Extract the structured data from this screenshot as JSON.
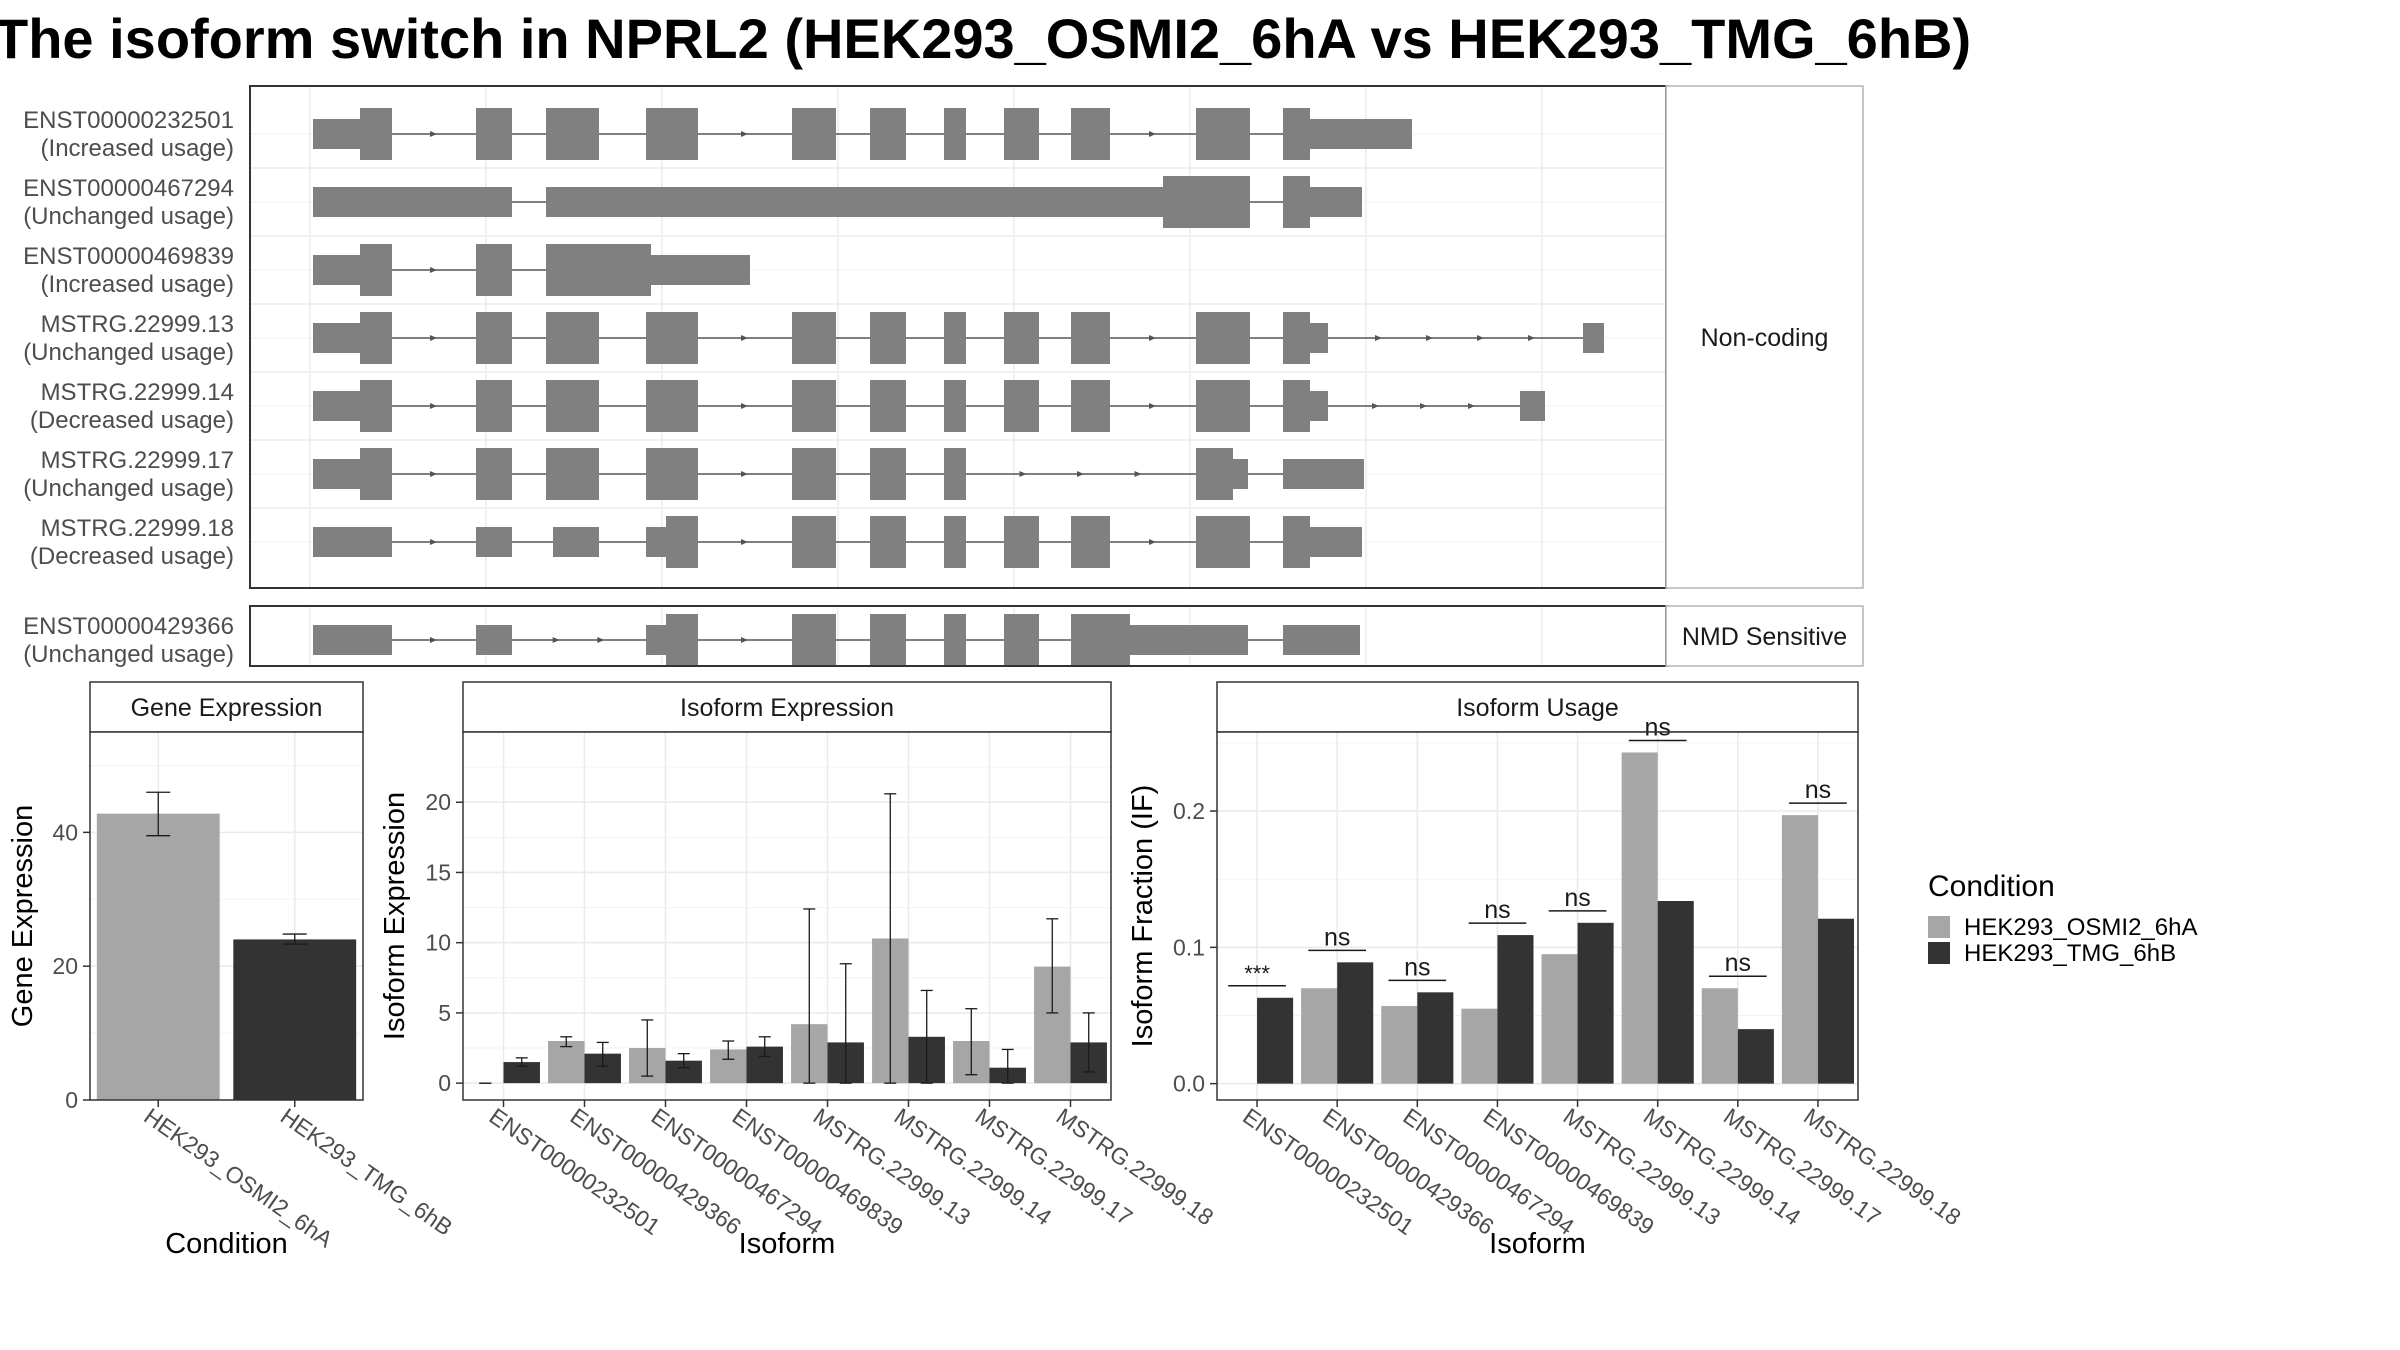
{
  "title": "The isoform switch in NPRL2 (HEK293_OSMI2_6hA vs HEK293_TMG_6hB)",
  "colors": {
    "cond_a": "#a6a6a6",
    "cond_b": "#333333",
    "exon": "#808080",
    "grid": "#ebebeb"
  },
  "chart_data": [
    {
      "type": "gene-structure",
      "panel": "transcripts",
      "groups": [
        {
          "label": "Non-coding",
          "transcripts": [
            {
              "id": "ENST00000232501",
              "status": "(Increased usage)"
            },
            {
              "id": "ENST00000467294",
              "status": "(Unchanged usage)"
            },
            {
              "id": "ENST00000469839",
              "status": "(Increased usage)"
            },
            {
              "id": "MSTRG.22999.13",
              "status": "(Unchanged usage)"
            },
            {
              "id": "MSTRG.22999.14",
              "status": "(Decreased usage)"
            },
            {
              "id": "MSTRG.22999.17",
              "status": "(Unchanged usage)"
            },
            {
              "id": "MSTRG.22999.18",
              "status": "(Decreased usage)"
            }
          ]
        },
        {
          "label": "NMD Sensitive",
          "transcripts": [
            {
              "id": "ENST00000429366",
              "status": "(Unchanged usage)"
            }
          ]
        }
      ]
    },
    {
      "type": "bar",
      "panel": "gene",
      "strip": "Gene Expression",
      "xlabel": "Condition",
      "ylabel": "Gene Expression",
      "ylim": [
        0,
        55
      ],
      "yticks": [
        0,
        20,
        40
      ],
      "categories": [
        "HEK293_OSMI2_6hA",
        "HEK293_TMG_6hB"
      ],
      "values": [
        42.8,
        24.0
      ],
      "errors": [
        [
          39.5,
          46.0
        ],
        [
          23.3,
          24.8
        ]
      ]
    },
    {
      "type": "bar",
      "panel": "isoform-expression",
      "strip": "Isoform Expression",
      "xlabel": "Isoform",
      "ylabel": "Isoform Expression",
      "ylim": [
        -1.2,
        25
      ],
      "yticks": [
        0,
        5,
        10,
        15,
        20
      ],
      "categories": [
        "ENST00000232501",
        "ENST00000429366",
        "ENST00000467294",
        "ENST00000469839",
        "MSTRG.22999.13",
        "MSTRG.22999.14",
        "MSTRG.22999.17",
        "MSTRG.22999.18"
      ],
      "series": [
        {
          "name": "HEK293_OSMI2_6hA",
          "values": [
            0.0,
            3.0,
            2.5,
            2.4,
            4.2,
            10.3,
            3.0,
            8.3
          ],
          "errors": [
            [
              0.0,
              0.0
            ],
            [
              2.6,
              3.3
            ],
            [
              0.5,
              4.5
            ],
            [
              1.7,
              3.0
            ],
            [
              0.0,
              12.4
            ],
            [
              0.0,
              20.6
            ],
            [
              0.6,
              5.3
            ],
            [
              5.0,
              11.7
            ]
          ]
        },
        {
          "name": "HEK293_TMG_6hB",
          "values": [
            1.5,
            2.1,
            1.6,
            2.6,
            2.9,
            3.3,
            1.1,
            2.9
          ],
          "errors": [
            [
              1.2,
              1.8
            ],
            [
              1.2,
              2.9
            ],
            [
              1.1,
              2.1
            ],
            [
              1.9,
              3.3
            ],
            [
              0.0,
              8.5
            ],
            [
              0.0,
              6.6
            ],
            [
              0.0,
              2.4
            ],
            [
              0.8,
              5.0
            ]
          ]
        }
      ]
    },
    {
      "type": "bar",
      "panel": "isoform-usage",
      "strip": "Isoform Usage",
      "xlabel": "Isoform",
      "ylabel": "Isoform Fraction (IF)",
      "ylim": [
        -0.012,
        0.258
      ],
      "yticks": [
        "0.0",
        "0.1",
        "0.2"
      ],
      "categories": [
        "ENST00000232501",
        "ENST00000429366",
        "ENST00000467294",
        "ENST00000469839",
        "MSTRG.22999.13",
        "MSTRG.22999.14",
        "MSTRG.22999.17",
        "MSTRG.22999.18"
      ],
      "series": [
        {
          "name": "HEK293_OSMI2_6hA",
          "values": [
            0.0,
            0.07,
            0.057,
            0.055,
            0.095,
            0.243,
            0.07,
            0.197
          ]
        },
        {
          "name": "HEK293_TMG_6hB",
          "values": [
            0.063,
            0.089,
            0.067,
            0.109,
            0.118,
            0.134,
            0.04,
            0.121
          ]
        }
      ],
      "significance": [
        "***",
        "ns",
        "ns",
        "ns",
        "ns",
        "ns",
        "ns",
        "ns"
      ]
    }
  ],
  "legend": {
    "title": "Condition",
    "items": [
      {
        "label": "HEK293_OSMI2_6hA",
        "color": "#a6a6a6"
      },
      {
        "label": "HEK293_TMG_6hB",
        "color": "#333333"
      }
    ]
  }
}
